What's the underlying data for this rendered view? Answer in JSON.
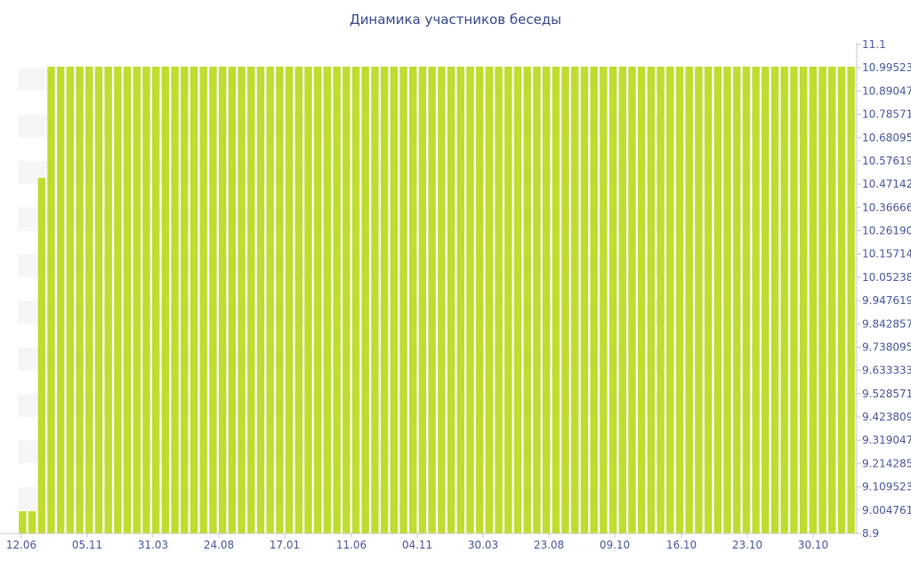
{
  "chart_data": {
    "type": "bar",
    "title": "Динамика участников беседы",
    "xlabel": "",
    "ylabel": "",
    "ylim": [
      8.9,
      11.1
    ],
    "y_axis_position": "right",
    "grid": "alternating horizontal bands",
    "legend": "none",
    "colors": {
      "bar": "#bedd2f",
      "band": "#f6f6f6",
      "text": "#4a5aa0",
      "title": "#3a4a8a"
    },
    "x_tick_labels": [
      "12.06",
      "05.11",
      "31.03",
      "24.08",
      "17.01",
      "11.06",
      "04.11",
      "30.03",
      "23.08",
      "09.10",
      "16.10",
      "23.10",
      "30.10"
    ],
    "y_tick_labels": [
      "11.1",
      "10.99523",
      "10.89047",
      "10.78571",
      "10.68095",
      "10.57619",
      "10.47142",
      "10.36666",
      "10.26190",
      "10.15714",
      "10.05238",
      "9.947619",
      "9.842857",
      "9.738095",
      "9.633333",
      "9.528571",
      "9.423809",
      "9.319047",
      "9.214285",
      "9.109523",
      "9.004761",
      "8.9"
    ],
    "values": [
      9,
      9,
      10.5,
      11,
      11,
      11,
      11,
      11,
      11,
      11,
      11,
      11,
      11,
      11,
      11,
      11,
      11,
      11,
      11,
      11,
      11,
      11,
      11,
      11,
      11,
      11,
      11,
      11,
      11,
      11,
      11,
      11,
      11,
      11,
      11,
      11,
      11,
      11,
      11,
      11,
      11,
      11,
      11,
      11,
      11,
      11,
      11,
      11,
      11,
      11,
      11,
      11,
      11,
      11,
      11,
      11,
      11,
      11,
      11,
      11,
      11,
      11,
      11,
      11,
      11,
      11,
      11,
      11,
      11,
      11,
      11,
      11,
      11,
      11,
      11,
      11,
      11,
      11,
      11,
      11,
      11,
      11,
      11,
      11,
      11,
      11,
      11,
      11
    ]
  }
}
